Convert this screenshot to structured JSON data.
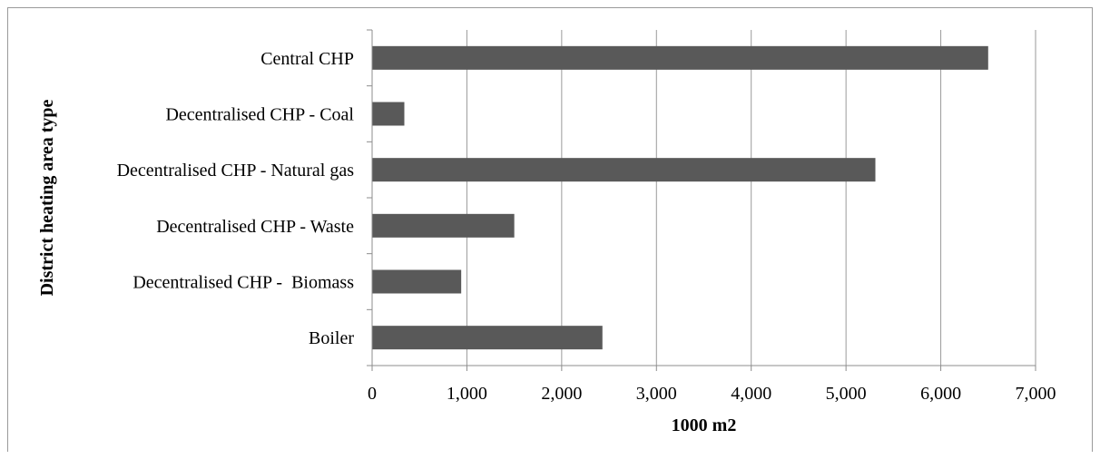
{
  "chart_data": {
    "type": "bar",
    "orientation": "horizontal",
    "categories": [
      "Central CHP",
      "Decentralised CHP - Coal",
      "Decentralised CHP - Natural gas",
      "Decentralised CHP - Waste",
      "Decentralised CHP -  Biomass",
      "Boiler"
    ],
    "values": [
      6500,
      340,
      5310,
      1500,
      940,
      2430
    ],
    "xlabel": "1000 m2",
    "ylabel": "District heating area type",
    "xlim": [
      0,
      7000
    ],
    "xticks": [
      0,
      1000,
      2000,
      3000,
      4000,
      5000,
      6000,
      7000
    ],
    "xtick_labels": [
      "0",
      "1,000",
      "2,000",
      "3,000",
      "4,000",
      "5,000",
      "6,000",
      "7,000"
    ],
    "grid": "vertical",
    "legend": "none",
    "bar_color": "#595959"
  }
}
